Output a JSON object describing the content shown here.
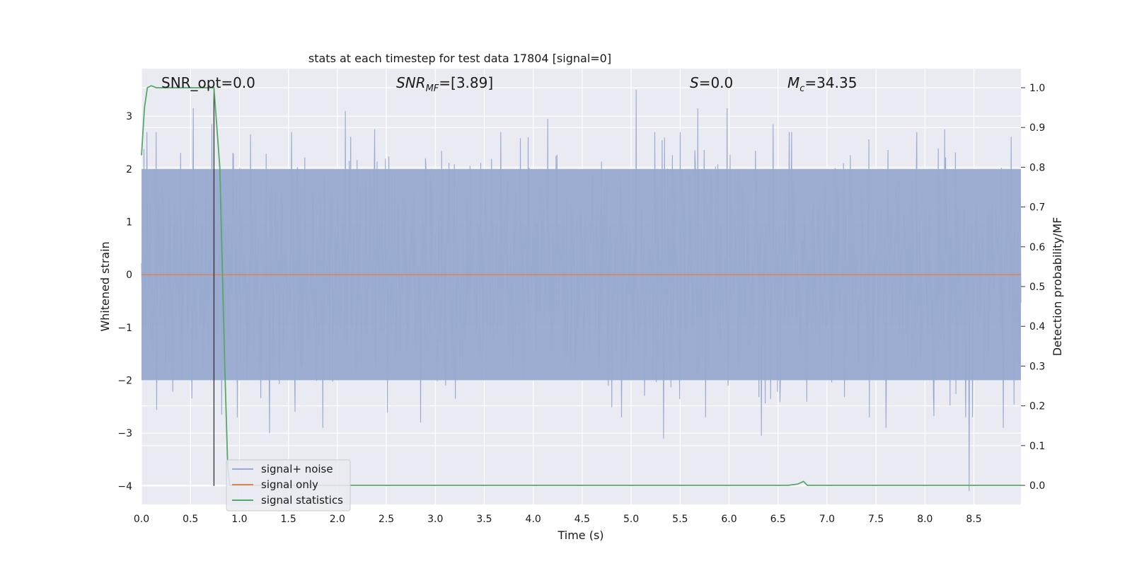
{
  "chart_data": {
    "type": "line",
    "title": "stats at each timestep for test data 17804 [signal=0]",
    "xlabel": "Time (s)",
    "ylabel": "Whitened strain",
    "ylabel_right": "Detection probability/MF",
    "xlim": [
      0.0,
      8.98
    ],
    "ylim": [
      -4.35,
      3.9
    ],
    "ylim_right": [
      -0.048,
      1.048
    ],
    "x_ticks": [
      "0.0",
      "0.5",
      "1.0",
      "1.5",
      "2.0",
      "2.5",
      "3.0",
      "3.5",
      "4.0",
      "4.5",
      "5.0",
      "5.5",
      "6.0",
      "6.5",
      "7.0",
      "7.5",
      "8.0",
      "8.5"
    ],
    "x_tick_values": [
      0.0,
      0.5,
      1.0,
      1.5,
      2.0,
      2.5,
      3.0,
      3.5,
      4.0,
      4.5,
      5.0,
      5.5,
      6.0,
      6.5,
      7.0,
      7.5,
      8.0,
      8.5
    ],
    "y_ticks": [
      "3",
      "2",
      "1",
      "0",
      "−1",
      "−2",
      "−3",
      "−4"
    ],
    "y_tick_values": [
      3,
      2,
      1,
      0,
      -1,
      -2,
      -3,
      -4
    ],
    "y_ticks_right": [
      "1.0",
      "0.9",
      "0.8",
      "0.7",
      "0.6",
      "0.5",
      "0.4",
      "0.3",
      "0.2",
      "0.1",
      "0.0"
    ],
    "y_tick_values_right": [
      1.0,
      0.9,
      0.8,
      0.7,
      0.6,
      0.5,
      0.4,
      0.3,
      0.2,
      0.1,
      0.0
    ],
    "grid": true,
    "legend_position": "lower-left",
    "annotations": [
      {
        "text": "SNR_opt=0.0",
        "x": 0.2
      },
      {
        "text_main": "SNR",
        "text_sub": "MF",
        "text_tail": "=[3.89]",
        "x": 2.6
      },
      {
        "text_main": "S",
        "text_tail": "=0.0",
        "x": 5.6
      },
      {
        "text_main": "M",
        "text_sub": "c",
        "text_tail": "=34.35",
        "x": 6.6
      }
    ],
    "vline": {
      "x": 0.74,
      "y_from": -4.0,
      "y_to": 3.5
    },
    "series": [
      {
        "name": "signal+ noise",
        "color": "#98aacf",
        "axis": "left",
        "n_samples": 1800,
        "envelope": [
          -2.0,
          2.0
        ],
        "sigma": 1.0,
        "peaks": [
          {
            "x": 0.53,
            "y": 3.15
          },
          {
            "x": 0.72,
            "y": 2.85
          },
          {
            "x": 2.08,
            "y": 3.1
          },
          {
            "x": 2.38,
            "y": 2.75
          },
          {
            "x": 3.95,
            "y": 2.6
          },
          {
            "x": 4.15,
            "y": 2.95
          },
          {
            "x": 5.05,
            "y": 3.5
          },
          {
            "x": 5.68,
            "y": 3.15
          },
          {
            "x": 5.98,
            "y": 3.15
          },
          {
            "x": 6.45,
            "y": 2.85
          },
          {
            "x": 8.2,
            "y": 2.75
          },
          {
            "x": 1.31,
            "y": -3.0
          },
          {
            "x": 1.85,
            "y": -2.9
          },
          {
            "x": 2.85,
            "y": -2.8
          },
          {
            "x": 5.33,
            "y": -3.1
          },
          {
            "x": 6.33,
            "y": -3.05
          },
          {
            "x": 7.6,
            "y": -2.9
          },
          {
            "x": 8.45,
            "y": -4.1
          },
          {
            "x": 8.8,
            "y": -2.9
          }
        ]
      },
      {
        "name": "signal only",
        "color": "#dd8452",
        "axis": "left",
        "x": [
          0.0,
          8.98
        ],
        "y": [
          0.0,
          0.0
        ]
      },
      {
        "name": "signal statistics",
        "color": "#55a868",
        "axis": "right",
        "x": [
          0.0,
          0.03,
          0.06,
          0.1,
          0.15,
          0.2,
          0.4,
          0.6,
          0.7,
          0.74,
          0.8,
          0.85,
          0.88,
          0.9,
          6.6,
          6.7,
          6.76,
          6.8,
          8.98
        ],
        "y": [
          0.83,
          0.95,
          1.0,
          1.005,
          1.0,
          1.0,
          1.0,
          1.0,
          1.0,
          1.0,
          0.8,
          0.3,
          0.05,
          0.0,
          0.0,
          0.003,
          0.01,
          0.0,
          0.0
        ]
      }
    ]
  }
}
